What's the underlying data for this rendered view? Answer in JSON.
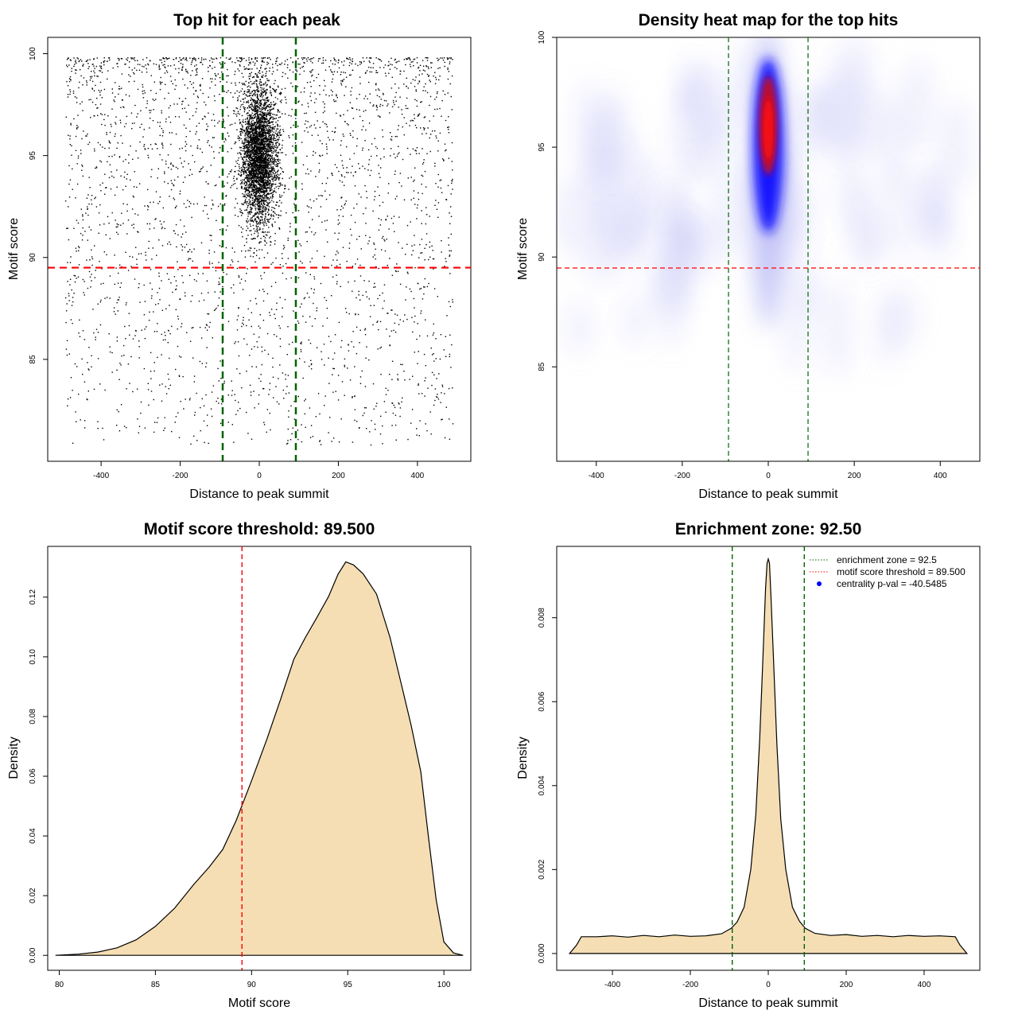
{
  "chart_data": [
    {
      "id": "scatter",
      "type": "scatter",
      "title": "Top hit for each peak",
      "xlabel": "Distance to peak summit",
      "ylabel": "Motif score",
      "xlim": [
        -535,
        535
      ],
      "ylim": [
        80,
        100.8
      ],
      "xticks": [
        -400,
        -200,
        0,
        200,
        400
      ],
      "yticks": [
        85,
        90,
        95,
        100
      ],
      "hline": {
        "y": 89.5,
        "color": "#ff0000"
      },
      "vlines": {
        "x": [
          -92.5,
          92.5
        ],
        "color": "#006400"
      },
      "point_color": "#000000",
      "x_range": [
        -490,
        490
      ],
      "y_range": [
        80.8,
        99.8
      ],
      "n_points": 6500
    },
    {
      "id": "heatmap",
      "type": "heatmap",
      "title": "Density heat map for the top hits",
      "xlabel": "Distance to peak summit",
      "ylabel": "Motif score",
      "xlim": [
        -492,
        492
      ],
      "ylim": [
        80.7,
        100
      ],
      "xticks": [
        -400,
        -200,
        0,
        200,
        400
      ],
      "yticks": [
        85,
        90,
        95,
        100
      ],
      "hline": {
        "y": 89.5,
        "color": "#ff0000"
      },
      "vlines": {
        "x": [
          -92.5,
          92.5
        ],
        "color": "#006400"
      },
      "density_peak": {
        "x": 0,
        "y": 95.8
      },
      "colormap": [
        "#ffffff",
        "#0000ff",
        "#ff0000"
      ]
    },
    {
      "id": "scoredensity",
      "type": "area",
      "title": "Motif score threshold: 89.500",
      "xlabel": "Motif score",
      "ylabel": "Density",
      "xlim": [
        79.4,
        101.4
      ],
      "ylim": [
        -0.005,
        0.137
      ],
      "xticks": [
        80,
        85,
        90,
        95,
        100
      ],
      "yticks": [
        0.0,
        0.02,
        0.04,
        0.06,
        0.08,
        0.1,
        0.12
      ],
      "ytick_labels": [
        "0.00",
        "0.02",
        "0.04",
        "0.06",
        "0.08",
        "0.10",
        "0.12"
      ],
      "vline": {
        "x": 89.5,
        "color": "#ff0000"
      },
      "fill": "#f5deb3",
      "x": [
        79.8,
        81,
        82,
        83,
        84,
        85,
        86,
        87,
        87.8,
        88.5,
        89.2,
        90,
        90.8,
        91.5,
        92.2,
        92.8,
        93.4,
        94,
        94.5,
        94.9,
        95.3,
        95.8,
        96.5,
        97.2,
        97.8,
        98.3,
        98.8,
        99.2,
        99.6,
        100,
        100.5,
        101
      ],
      "y": [
        0,
        0.0004,
        0.0011,
        0.0025,
        0.0052,
        0.0097,
        0.0158,
        0.0238,
        0.0296,
        0.0355,
        0.0452,
        0.0585,
        0.0725,
        0.0856,
        0.0992,
        0.1065,
        0.1132,
        0.1202,
        0.1277,
        0.1318,
        0.1308,
        0.1278,
        0.121,
        0.1065,
        0.0905,
        0.077,
        0.0615,
        0.0395,
        0.0185,
        0.0045,
        0.0008,
        0
      ]
    },
    {
      "id": "distdensity",
      "type": "area",
      "title": "Enrichment zone: 92.50",
      "xlabel": "Distance to peak summit",
      "ylabel": "Density",
      "xlim": [
        -543,
        543
      ],
      "ylim": [
        -0.0004,
        0.0097
      ],
      "xticks": [
        -400,
        -200,
        0,
        200,
        400
      ],
      "yticks": [
        0,
        0.002,
        0.004,
        0.006,
        0.008
      ],
      "ytick_labels": [
        "0.000",
        "0.002",
        "0.004",
        "0.006",
        "0.008"
      ],
      "vlines": {
        "x": [
          -92.5,
          92.5
        ],
        "color": "#006400"
      },
      "fill": "#f5deb3",
      "x": [
        -510,
        -492,
        -480,
        -440,
        -400,
        -360,
        -320,
        -280,
        -240,
        -200,
        -160,
        -120,
        -95,
        -80,
        -62,
        -45,
        -32,
        -22,
        -13,
        -7,
        -3,
        0,
        3,
        7,
        13,
        22,
        32,
        45,
        62,
        80,
        95,
        120,
        160,
        200,
        240,
        280,
        320,
        360,
        400,
        440,
        480,
        492,
        510
      ],
      "y": [
        0,
        0.0002,
        0.0004,
        0.0004,
        0.00042,
        0.00039,
        0.00043,
        0.0004,
        0.00044,
        0.00041,
        0.00042,
        0.00047,
        0.0006,
        0.00075,
        0.0011,
        0.002,
        0.0033,
        0.0051,
        0.0072,
        0.0087,
        0.0093,
        0.0094,
        0.0093,
        0.0085,
        0.0071,
        0.005,
        0.0032,
        0.002,
        0.0011,
        0.00077,
        0.0006,
        0.00048,
        0.00043,
        0.00045,
        0.00041,
        0.00043,
        0.0004,
        0.00043,
        0.00041,
        0.00042,
        0.0004,
        0.0002,
        0
      ],
      "legend": {
        "position": "top-right",
        "entries": [
          {
            "label": "enrichment zone = 92.5",
            "style": "dotted-line",
            "color": "#006400"
          },
          {
            "label": "motif score threshold = 89.500",
            "style": "dotted-line",
            "color": "#ff0000"
          },
          {
            "label": "centrality p-val = -40.5485",
            "style": "dot",
            "color": "#0000ff"
          }
        ]
      }
    }
  ]
}
